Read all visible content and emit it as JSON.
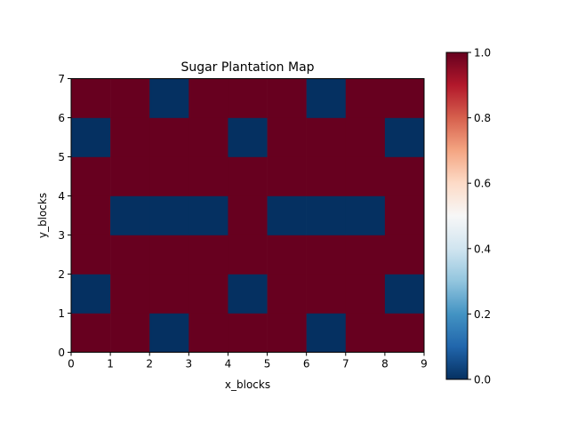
{
  "chart_data": {
    "type": "heatmap",
    "title": "Sugar Plantation Map",
    "xlabel": "x_blocks",
    "ylabel": "y_blocks",
    "xlim": [
      0,
      9
    ],
    "ylim": [
      0,
      7
    ],
    "x_ticks": [
      "0",
      "1",
      "2",
      "3",
      "4",
      "5",
      "6",
      "7",
      "8",
      "9"
    ],
    "y_ticks": [
      "0",
      "1",
      "2",
      "3",
      "4",
      "5",
      "6",
      "7"
    ],
    "grid": false,
    "colormap": "RdBu_r",
    "color_low": "#053061",
    "color_high": "#67001f",
    "colorbar": {
      "range": [
        0,
        1
      ],
      "ticks": [
        "0.0",
        "0.2",
        "0.4",
        "0.6",
        "0.8",
        "1.0"
      ]
    },
    "rows_bottom_to_top": [
      [
        1,
        1,
        0,
        1,
        1,
        1,
        0,
        1,
        1
      ],
      [
        0,
        1,
        1,
        1,
        0,
        1,
        1,
        1,
        0
      ],
      [
        1,
        1,
        1,
        1,
        1,
        1,
        1,
        1,
        1
      ],
      [
        1,
        0,
        0,
        0,
        1,
        0,
        0,
        0,
        1
      ],
      [
        1,
        1,
        1,
        1,
        1,
        1,
        1,
        1,
        1
      ],
      [
        0,
        1,
        1,
        1,
        0,
        1,
        1,
        1,
        0
      ],
      [
        1,
        1,
        0,
        1,
        1,
        1,
        0,
        1,
        1
      ]
    ]
  }
}
